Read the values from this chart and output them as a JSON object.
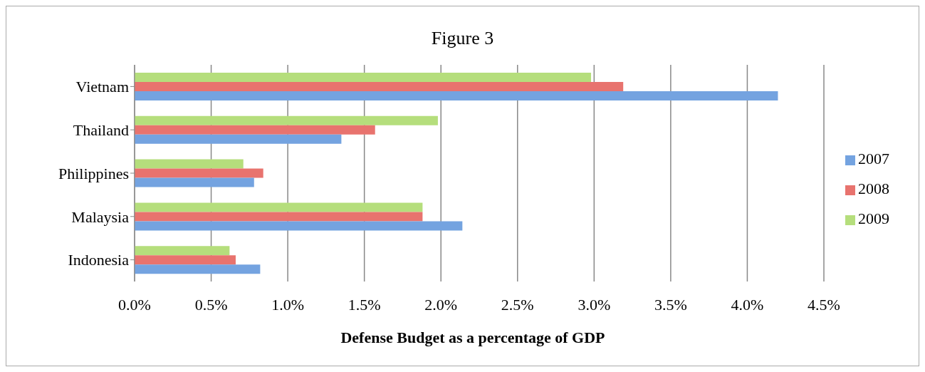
{
  "chart_data": {
    "type": "bar",
    "orientation": "horizontal",
    "title": "Figure 3",
    "xlabel": "Defense Budget as a percentage of GDP",
    "categories": [
      "Vietnam",
      "Thailand",
      "Philippines",
      "Malaysia",
      "Indonesia"
    ],
    "series": [
      {
        "name": "2009",
        "color": "#b5de7c",
        "values": [
          2.98,
          1.98,
          0.71,
          1.88,
          0.62
        ]
      },
      {
        "name": "2008",
        "color": "#e8736e",
        "values": [
          3.19,
          1.57,
          0.84,
          1.88,
          0.66
        ]
      },
      {
        "name": "2007",
        "color": "#74a3e0",
        "values": [
          4.2,
          1.35,
          0.78,
          2.14,
          0.82
        ]
      }
    ],
    "xlim": [
      0,
      4.5
    ],
    "xticks": [
      {
        "value": 0,
        "label": "0.0%"
      },
      {
        "value": 0.5,
        "label": "0.5%"
      },
      {
        "value": 1,
        "label": "1.0%"
      },
      {
        "value": 1.5,
        "label": "1.5%"
      },
      {
        "value": 2,
        "label": "2.0%"
      },
      {
        "value": 2.5,
        "label": "2.5%"
      },
      {
        "value": 3,
        "label": "3.0%"
      },
      {
        "value": 3.5,
        "label": "3.5%"
      },
      {
        "value": 4,
        "label": "4.0%"
      },
      {
        "value": 4.5,
        "label": "4.5%"
      }
    ],
    "grid": "x",
    "legend": "right"
  }
}
